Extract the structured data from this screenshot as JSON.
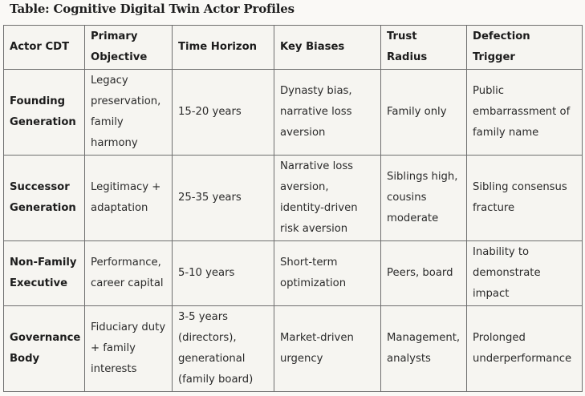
{
  "title": "Table: Cognitive Digital Twin Actor Profiles",
  "table": {
    "headers": [
      "Actor CDT",
      "Primary Objective",
      "Time Horizon",
      "Key Biases",
      "Trust Radius",
      "Defection Trigger"
    ],
    "rows": [
      [
        "Founding Generation",
        "Legacy preservation, family harmony",
        "15-20 years",
        "Dynasty bias, narrative loss aversion",
        "Family only",
        "Public embarrassment of family name"
      ],
      [
        "Successor Generation",
        "Legitimacy + adaptation",
        "25-35 years",
        "Narrative loss aversion, identity-driven risk aversion",
        "Siblings high, cousins moderate",
        "Sibling consensus fracture"
      ],
      [
        "Non-Family Executive",
        "Performance, career capital",
        "5-10 years",
        "Short-term optimization",
        "Peers, board",
        "Inability to demonstrate impact"
      ],
      [
        "Governance Body",
        "Fiduciary duty + family interests",
        "3-5 years (directors), generational (family board)",
        "Market-driven urgency",
        "Management, analysts",
        "Prolonged underperformance"
      ]
    ]
  }
}
